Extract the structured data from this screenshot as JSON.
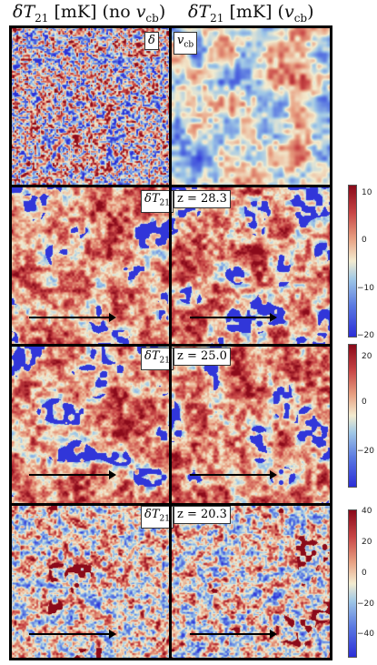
{
  "titles": {
    "left": {
      "symbol": "δT",
      "sub": "21",
      "unit": "[mK]",
      "paren_open": "(no ",
      "v": "v",
      "v_sub": "cb",
      "paren_close": ")"
    },
    "right": {
      "symbol": "δT",
      "sub": "21",
      "unit": "[mK]",
      "paren_open": "(",
      "v": "v",
      "v_sub": "cb",
      "paren_close": ")"
    }
  },
  "rows": [
    {
      "left_label": "δ",
      "right_label": "v",
      "right_label_sub": "cb",
      "kind": "density"
    },
    {
      "left_label": "δT",
      "left_label_sub": "21",
      "right_label": "z = 28.3",
      "kind": "t21"
    },
    {
      "left_label": "δT",
      "left_label_sub": "21",
      "right_label": "z = 25.0",
      "kind": "t21"
    },
    {
      "left_label": "δT",
      "left_label_sub": "21",
      "right_label": "z = 20.3",
      "kind": "t21b"
    }
  ],
  "colorbars": [
    {
      "ticks": [
        "10",
        "0",
        "−10",
        "−20"
      ],
      "range": [
        -20,
        12
      ]
    },
    {
      "ticks": [
        "20",
        "0",
        "−20"
      ],
      "range": [
        -32,
        24
      ]
    },
    {
      "ticks": [
        "40",
        "20",
        "0",
        "−20",
        "−40"
      ],
      "range": [
        -48,
        44
      ]
    }
  ],
  "colors": {
    "high": "#8b0a1a",
    "mid": "#f3ecd0",
    "low": "#2c2fd8"
  }
}
